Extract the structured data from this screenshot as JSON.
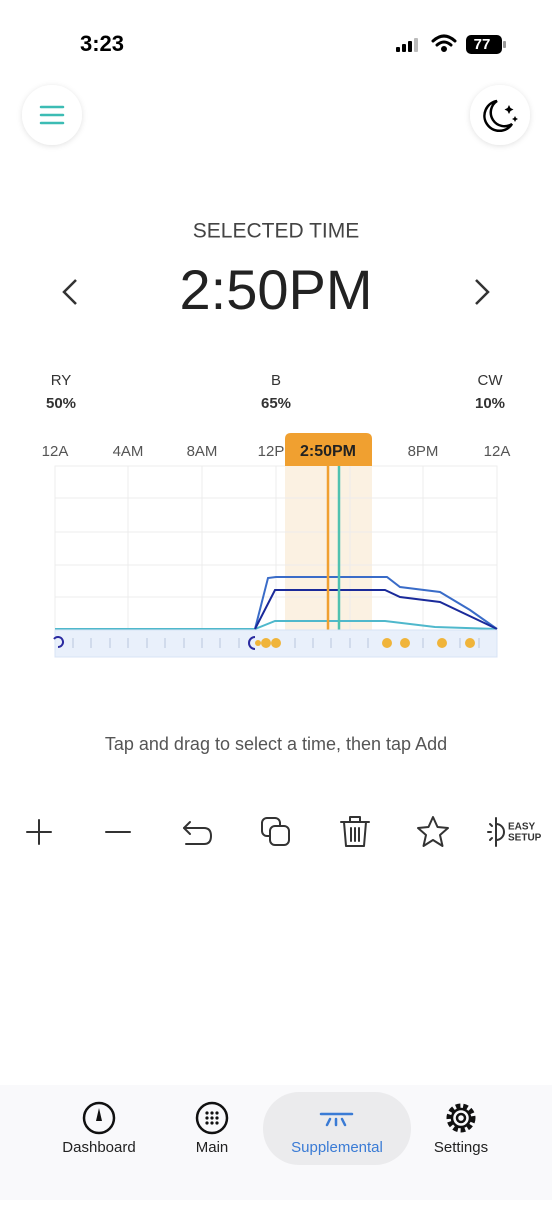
{
  "status_bar": {
    "time": "3:23",
    "battery": "77"
  },
  "header": {
    "label": "SELECTED TIME",
    "time": "2:50PM"
  },
  "channels": [
    {
      "name": "RY",
      "value": "50%"
    },
    {
      "name": "B",
      "value": "65%"
    },
    {
      "name": "CW",
      "value": "10%"
    }
  ],
  "timeline": {
    "axis_labels": [
      "12A",
      "4AM",
      "8AM",
      "12P",
      "8PM",
      "12A"
    ],
    "selected": "2:50PM"
  },
  "hint": "Tap and drag to select a time, then tap Add",
  "toolbar": {
    "easy_setup": [
      "EASY",
      "SETUP"
    ]
  },
  "tabs": [
    "Dashboard",
    "Main",
    "Supplemental",
    "Settings"
  ]
}
